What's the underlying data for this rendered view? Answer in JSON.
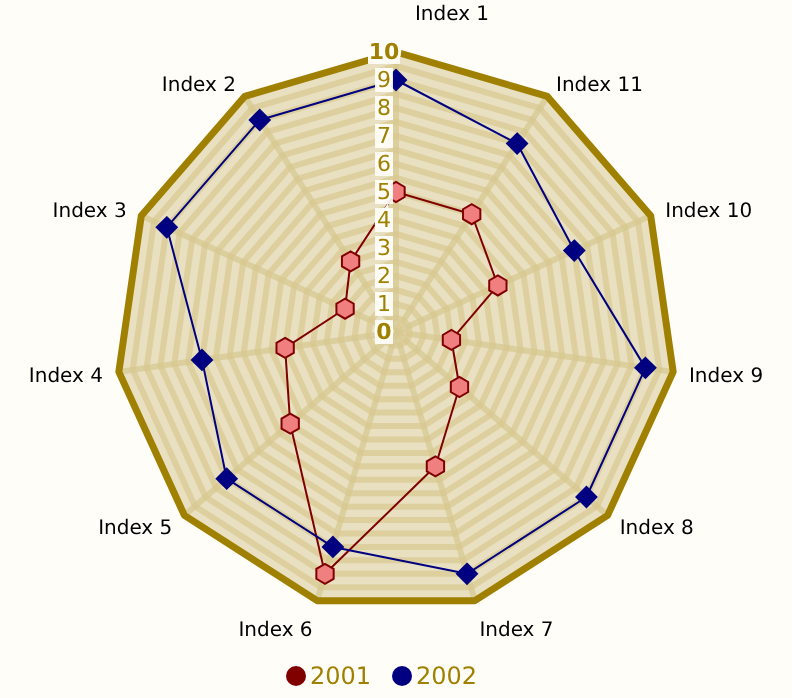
{
  "chart_data": {
    "type": "radar",
    "categories": [
      "Index 1",
      "Index 11",
      "Index 10",
      "Index 9",
      "Index 8",
      "Index 7",
      "Index 6",
      "Index 5",
      "Index 4",
      "Index 3",
      "Index 2"
    ],
    "series": [
      {
        "name": "2001",
        "color": "#800000",
        "marker": "circle",
        "values": [
          5,
          5,
          4,
          2,
          3,
          5,
          9,
          5,
          4,
          2,
          3
        ]
      },
      {
        "name": "2002",
        "color": "#000080",
        "marker": "diamond",
        "values": [
          9,
          8,
          7,
          9,
          9,
          9,
          8,
          8,
          7,
          9,
          9
        ]
      }
    ],
    "ylim": [
      0,
      10
    ],
    "yticks": [
      0,
      1,
      2,
      3,
      4,
      5,
      6,
      7,
      8,
      9,
      10
    ],
    "grid": true,
    "legend": "bottom"
  }
}
